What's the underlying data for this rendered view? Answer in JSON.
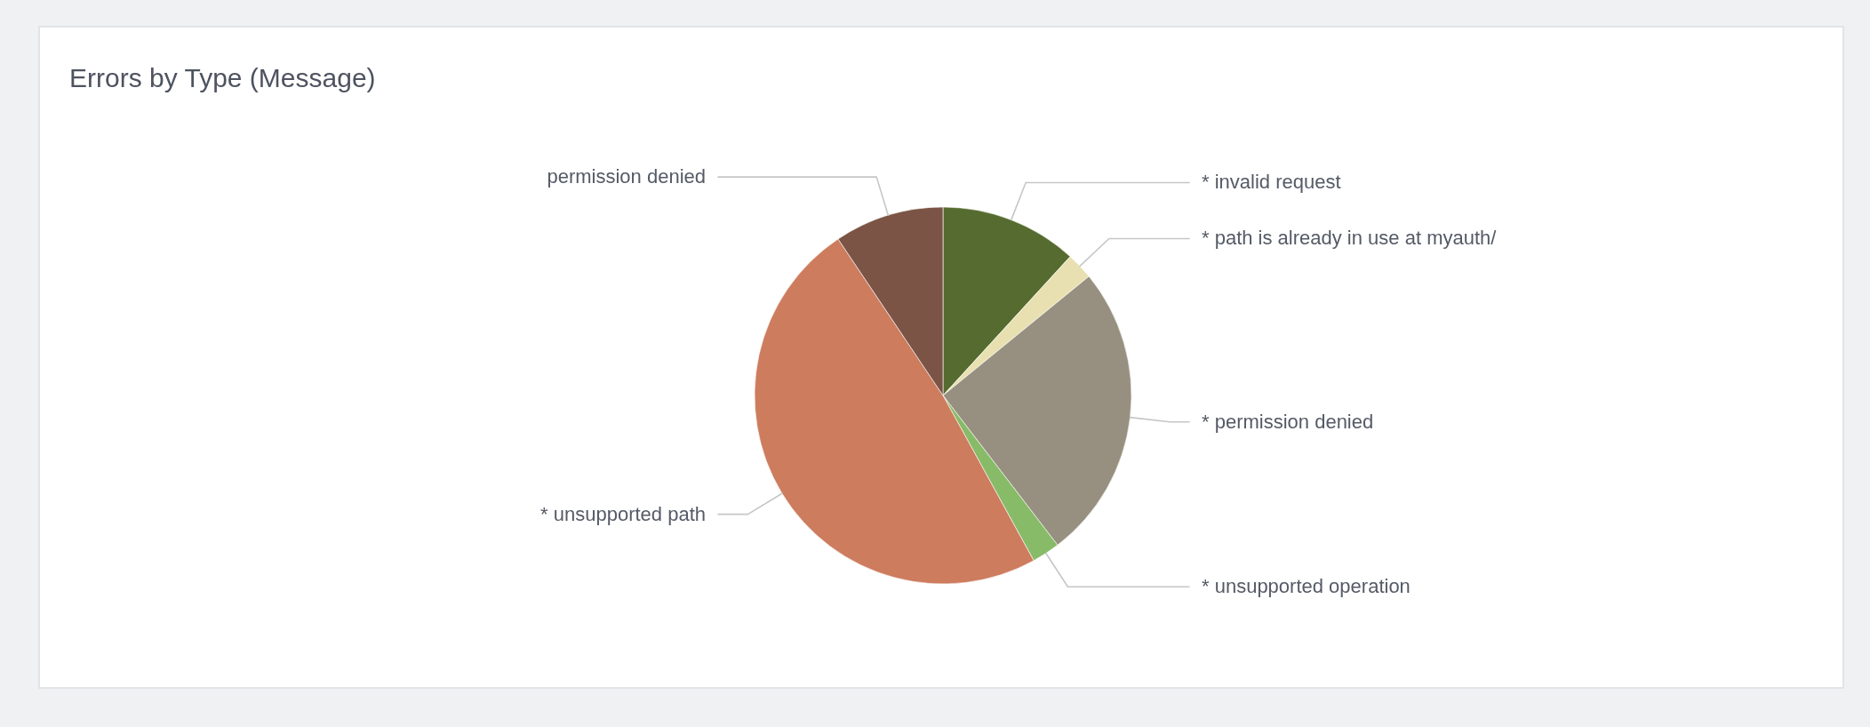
{
  "chart_data": {
    "type": "pie",
    "title": "Errors by Type (Message)",
    "categories": [
      "* invalid request",
      "* path is already in use at myauth/",
      "* permission denied",
      "* unsupported operation",
      "* unsupported path",
      "permission denied"
    ],
    "values": [
      11.8,
      2.3,
      25.5,
      2.4,
      48.6,
      9.4
    ],
    "colors": [
      "#566b2f",
      "#e8e0b0",
      "#979080",
      "#88bb68",
      "#cd7c5e",
      "#7b5445"
    ]
  }
}
